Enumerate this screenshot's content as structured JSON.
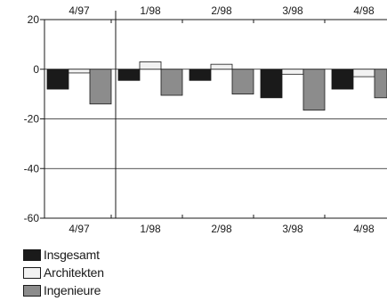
{
  "chart_data": {
    "type": "bar",
    "categories": [
      "4/97",
      "1/98",
      "2/98",
      "3/98",
      "4/98"
    ],
    "series": [
      {
        "name": "Insgesamt",
        "color": "#1a1a1a",
        "values": [
          -8,
          -4.5,
          -4.5,
          -11.5,
          -8
        ]
      },
      {
        "name": "Architekten",
        "color": "#f2f2f2",
        "values": [
          -1.5,
          3,
          2,
          -2,
          -3
        ]
      },
      {
        "name": "Ingenieure",
        "color": "#8c8c8c",
        "values": [
          -14,
          -10.5,
          -10,
          -16.5,
          -11.5
        ]
      }
    ],
    "y_ticks": [
      "20",
      "0",
      "-20",
      "-40",
      "-60"
    ],
    "ylim": [
      -60,
      20
    ],
    "grid": "horizontal at 0, -20, -40",
    "category_labels_top_and_bottom": true,
    "legend_position": "bottom-left"
  }
}
